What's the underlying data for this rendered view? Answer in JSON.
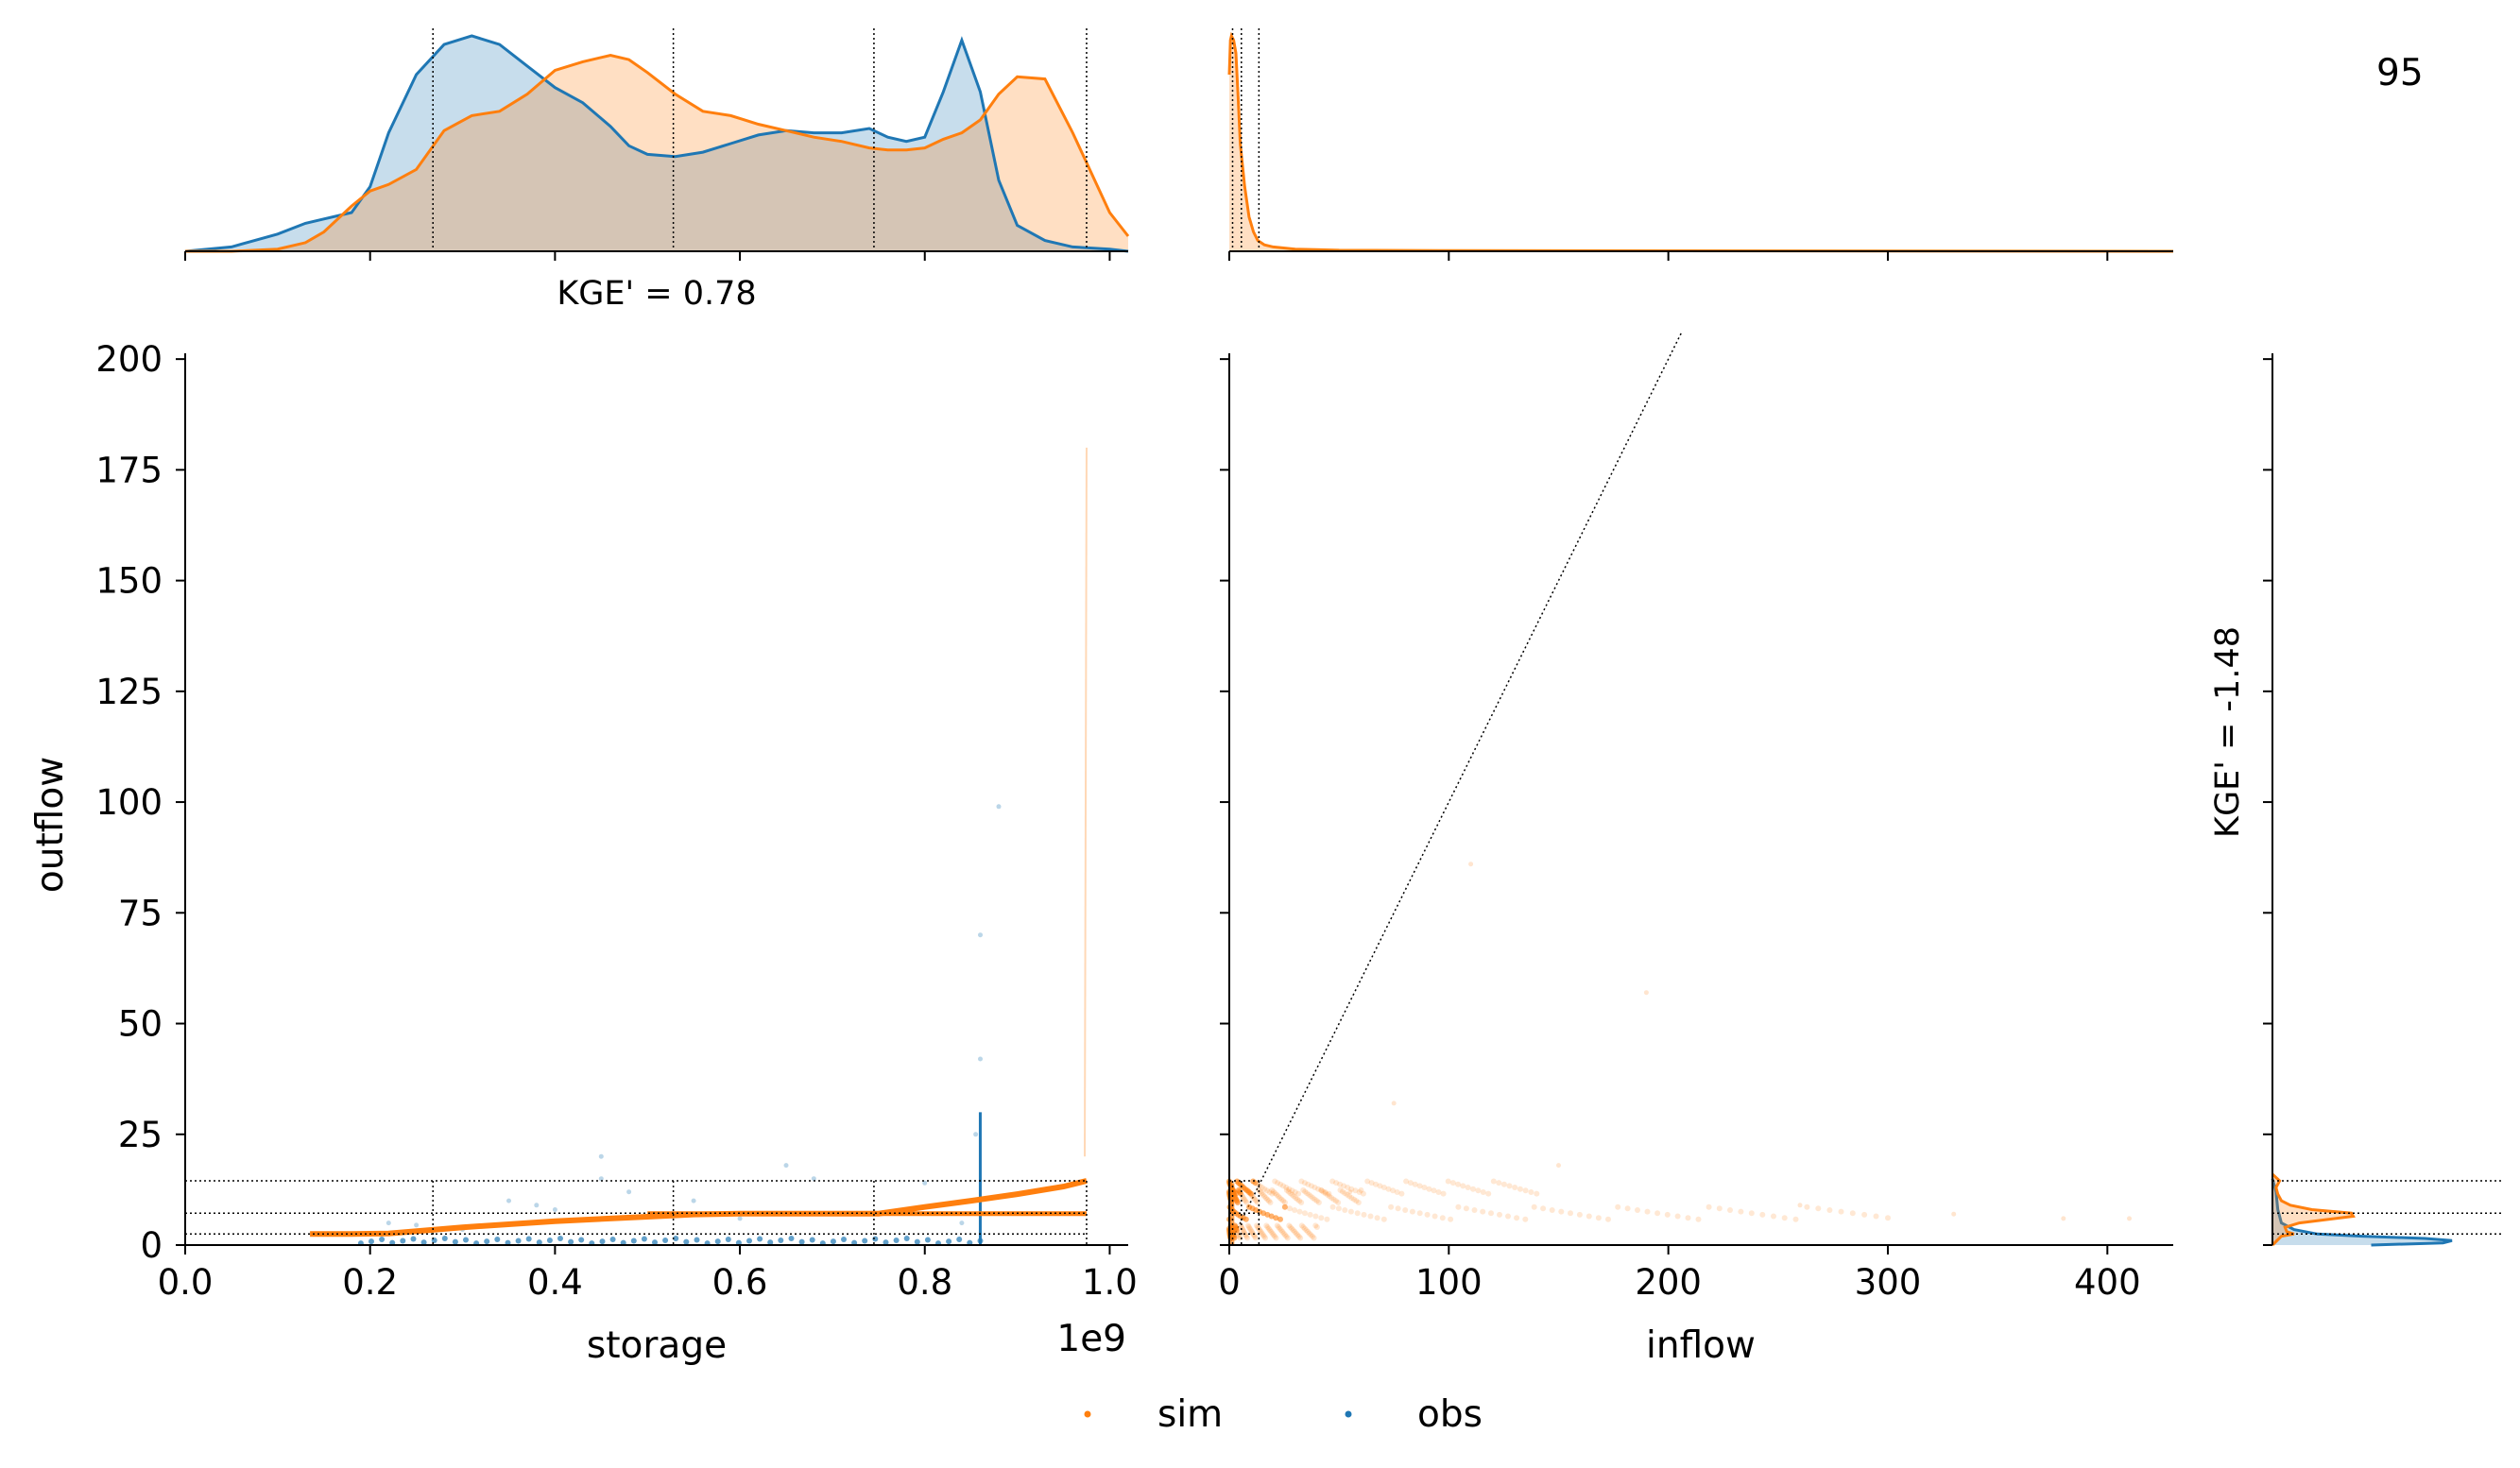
{
  "corner_label": "95",
  "colors": {
    "sim": "#ff7f0e",
    "obs": "#1f77b4",
    "overlap": "#c4c1b8"
  },
  "kge": {
    "storage": "KGE' = 0.78",
    "outflow": "KGE' = -1.48"
  },
  "axes": {
    "storage": {
      "label": "storage",
      "offset_text": "1e9",
      "range": [
        0.0,
        1.02
      ],
      "ticks": [
        0.0,
        0.2,
        0.4,
        0.6,
        0.8,
        1.0
      ],
      "tick_labels": [
        "0.0",
        "0.2",
        "0.4",
        "0.6",
        "0.8",
        "1.0"
      ],
      "quantiles": [
        0.268,
        0.528,
        0.745,
        0.975
      ]
    },
    "inflow": {
      "label": "inflow",
      "range": [
        0,
        430
      ],
      "ticks": [
        0,
        100,
        200,
        300,
        400
      ],
      "tick_labels": [
        "0",
        "100",
        "200",
        "300",
        "400"
      ],
      "quantiles": [
        1.5,
        5.5,
        13.5
      ]
    },
    "outflow": {
      "label": "outflow",
      "range": [
        0,
        206
      ],
      "ticks": [
        0,
        25,
        50,
        75,
        100,
        125,
        150,
        175,
        200
      ],
      "tick_labels": [
        "0",
        "25",
        "50",
        "75",
        "100",
        "125",
        "150",
        "175",
        "200"
      ],
      "quantiles": [
        2.5,
        7.2,
        14.5
      ]
    }
  },
  "legend": [
    {
      "key": "sim",
      "label": "sim"
    },
    {
      "key": "obs",
      "label": "obs"
    }
  ],
  "chart_data": [
    {
      "type": "area",
      "panel": "storage-density",
      "x_units": "storage (1e9)",
      "series": [
        {
          "name": "obs",
          "x": [
            0.0,
            0.05,
            0.1,
            0.13,
            0.15,
            0.18,
            0.2,
            0.22,
            0.25,
            0.28,
            0.31,
            0.34,
            0.37,
            0.4,
            0.43,
            0.46,
            0.48,
            0.5,
            0.53,
            0.56,
            0.59,
            0.62,
            0.65,
            0.68,
            0.71,
            0.74,
            0.76,
            0.78,
            0.8,
            0.82,
            0.84,
            0.86,
            0.88,
            0.9,
            0.93,
            0.96,
            1.0,
            1.02
          ],
          "y": [
            0.0,
            0.02,
            0.08,
            0.13,
            0.15,
            0.18,
            0.3,
            0.55,
            0.82,
            0.96,
            1.0,
            0.96,
            0.86,
            0.76,
            0.69,
            0.58,
            0.49,
            0.45,
            0.44,
            0.46,
            0.5,
            0.54,
            0.56,
            0.55,
            0.55,
            0.57,
            0.53,
            0.51,
            0.53,
            0.74,
            0.98,
            0.74,
            0.33,
            0.12,
            0.05,
            0.02,
            0.01,
            0.0
          ]
        },
        {
          "name": "sim",
          "x": [
            0.0,
            0.05,
            0.1,
            0.13,
            0.15,
            0.18,
            0.2,
            0.22,
            0.25,
            0.28,
            0.31,
            0.34,
            0.37,
            0.4,
            0.43,
            0.46,
            0.48,
            0.5,
            0.53,
            0.56,
            0.59,
            0.62,
            0.65,
            0.68,
            0.71,
            0.74,
            0.76,
            0.78,
            0.8,
            0.82,
            0.84,
            0.86,
            0.88,
            0.9,
            0.93,
            0.96,
            1.0,
            1.02
          ],
          "y": [
            0.0,
            0.0,
            0.01,
            0.04,
            0.09,
            0.21,
            0.28,
            0.31,
            0.38,
            0.56,
            0.63,
            0.65,
            0.73,
            0.84,
            0.88,
            0.91,
            0.89,
            0.83,
            0.73,
            0.65,
            0.63,
            0.59,
            0.56,
            0.53,
            0.51,
            0.48,
            0.47,
            0.47,
            0.48,
            0.52,
            0.55,
            0.61,
            0.73,
            0.81,
            0.8,
            0.55,
            0.18,
            0.07
          ]
        }
      ]
    },
    {
      "type": "area",
      "panel": "inflow-density",
      "series": [
        {
          "name": "sim",
          "x": [
            0,
            0.5,
            1,
            2,
            3,
            4,
            5,
            7,
            9,
            11,
            13,
            16,
            20,
            30,
            50,
            100,
            200,
            430
          ],
          "y": [
            0.82,
            0.98,
            1.0,
            0.98,
            0.92,
            0.72,
            0.5,
            0.3,
            0.16,
            0.09,
            0.05,
            0.03,
            0.02,
            0.01,
            0.005,
            0.003,
            0.002,
            0.0
          ]
        }
      ]
    },
    {
      "type": "scatter",
      "panel": "storage-vs-outflow",
      "xlabel": "storage",
      "ylabel": "outflow",
      "xlim": [
        0.0,
        1.02
      ],
      "ylim": [
        0,
        206
      ],
      "series": [
        {
          "name": "sim",
          "line_x": [
            0.135,
            0.18,
            0.22,
            0.3,
            0.4,
            0.5,
            0.55,
            0.6,
            0.7,
            0.75,
            0.8,
            0.85,
            0.9,
            0.95,
            0.975
          ],
          "line_y": [
            2.5,
            2.5,
            2.6,
            4.0,
            5.4,
            6.4,
            6.9,
            7.1,
            7.1,
            7.1,
            8.6,
            10.0,
            11.5,
            13.2,
            14.5
          ],
          "plateau_x": [
            0.5,
            0.975
          ],
          "plateau_y": [
            7.1,
            7.1
          ],
          "spike_x": [
            0.973,
            0.975
          ],
          "spike_y": [
            20,
            180
          ]
        },
        {
          "name": "obs",
          "cluster_x": [
            0.19,
            0.86
          ],
          "cluster_y": [
            0.4,
            1.5
          ],
          "scatter": [
            [
              0.22,
              5
            ],
            [
              0.25,
              4.5
            ],
            [
              0.3,
              3.5
            ],
            [
              0.35,
              10
            ],
            [
              0.38,
              9
            ],
            [
              0.4,
              8
            ],
            [
              0.45,
              15
            ],
            [
              0.45,
              20
            ],
            [
              0.48,
              12
            ],
            [
              0.55,
              10
            ],
            [
              0.6,
              6
            ],
            [
              0.65,
              18
            ],
            [
              0.68,
              15
            ],
            [
              0.72,
              7
            ],
            [
              0.8,
              14
            ],
            [
              0.84,
              5
            ],
            [
              0.855,
              25
            ],
            [
              0.86,
              42
            ],
            [
              0.86,
              70
            ],
            [
              0.88,
              99
            ]
          ]
        }
      ]
    },
    {
      "type": "scatter",
      "panel": "inflow-vs-outflow",
      "xlabel": "inflow",
      "xlim": [
        0,
        430
      ],
      "ylim": [
        0,
        206
      ],
      "reference_line": {
        "x": [
          0,
          206
        ],
        "y": [
          0,
          206
        ]
      },
      "series": [
        {
          "name": "sim",
          "bands": [
            [
              0,
              300,
              7.2
            ],
            [
              0,
              140,
              13
            ],
            [
              0,
              60,
              11
            ],
            [
              0,
              40,
              3
            ]
          ],
          "outliers": [
            [
              110,
              86
            ],
            [
              190,
              57
            ],
            [
              75,
              32
            ],
            [
              55,
              12
            ],
            [
              150,
              18
            ],
            [
              260,
              9
            ],
            [
              330,
              7
            ],
            [
              380,
              6
            ],
            [
              410,
              6
            ]
          ]
        }
      ]
    },
    {
      "type": "area",
      "panel": "outflow-density",
      "series": [
        {
          "name": "obs",
          "y": [
            0.0,
            0.5,
            1.0,
            1.5,
            2.0,
            2.5,
            3.5,
            5,
            8,
            12,
            15
          ],
          "x": [
            0.55,
            0.95,
            1.0,
            0.85,
            0.5,
            0.25,
            0.12,
            0.05,
            0.03,
            0.02,
            0.0
          ]
        },
        {
          "name": "sim",
          "y": [
            0,
            2,
            2.5,
            3,
            4,
            5,
            6,
            6.5,
            7.2,
            8,
            9,
            10,
            11.5,
            13,
            14.5,
            16
          ],
          "x": [
            0.0,
            0.05,
            0.12,
            0.08,
            0.07,
            0.15,
            0.35,
            0.45,
            0.44,
            0.22,
            0.1,
            0.05,
            0.03,
            0.02,
            0.04,
            0.0
          ]
        }
      ]
    }
  ]
}
